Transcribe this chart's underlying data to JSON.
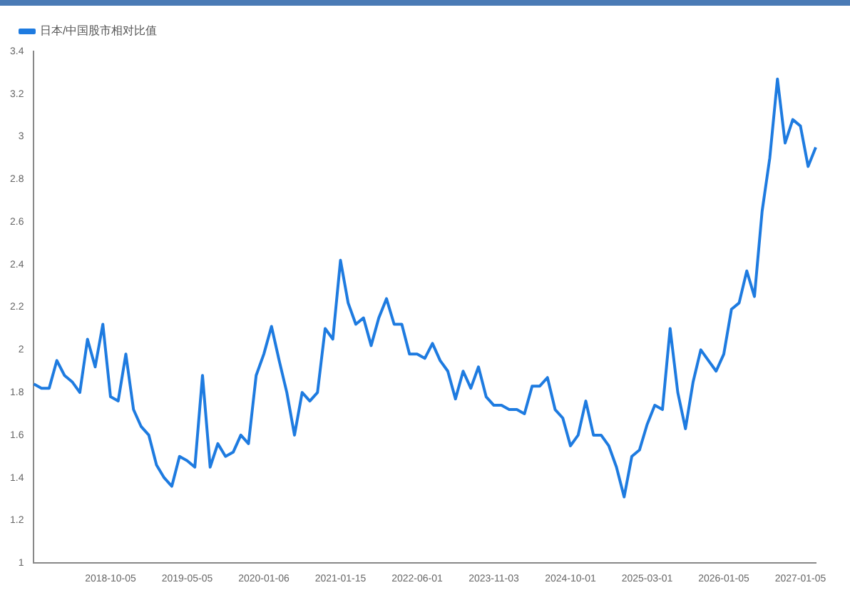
{
  "chart_data": {
    "type": "line",
    "legend": "top left",
    "marker": "none",
    "categories": [
      null,
      null,
      null,
      null,
      null,
      null,
      null,
      null,
      null,
      null,
      "2018-10-05",
      null,
      null,
      null,
      null,
      null,
      null,
      null,
      null,
      null,
      "2019-05-05",
      null,
      null,
      null,
      null,
      null,
      null,
      null,
      null,
      null,
      "2020-01-06",
      null,
      null,
      null,
      null,
      null,
      null,
      null,
      null,
      null,
      "2021-01-15",
      null,
      null,
      null,
      null,
      null,
      null,
      null,
      null,
      null,
      "2022-06-01",
      null,
      null,
      null,
      null,
      null,
      null,
      null,
      null,
      null,
      "2023-11-03",
      null,
      null,
      null,
      null,
      null,
      null,
      null,
      null,
      null,
      "2024-10-01",
      null,
      null,
      null,
      null,
      null,
      null,
      null,
      null,
      null,
      "2025-03-01",
      null,
      null,
      null,
      null,
      null,
      null,
      null,
      null,
      null,
      "2026-01-05",
      null,
      null,
      null,
      null,
      null,
      null,
      null,
      null,
      null,
      "2027-01-05",
      null,
      null
    ],
    "series": [
      {
        "name": "日本/中国股市相对比值",
        "color": "#1e7be0",
        "values": [
          1.84,
          1.82,
          1.82,
          1.95,
          1.88,
          1.85,
          1.8,
          2.05,
          1.92,
          2.12,
          1.78,
          1.76,
          1.98,
          1.72,
          1.64,
          1.6,
          1.46,
          1.4,
          1.36,
          1.5,
          1.48,
          1.45,
          1.88,
          1.45,
          1.56,
          1.5,
          1.52,
          1.6,
          1.56,
          1.88,
          1.98,
          2.11,
          1.95,
          1.8,
          1.6,
          1.8,
          1.76,
          1.8,
          2.1,
          2.05,
          2.42,
          2.22,
          2.12,
          2.15,
          2.02,
          2.15,
          2.24,
          2.12,
          2.12,
          1.98,
          1.98,
          1.96,
          2.03,
          1.95,
          1.9,
          1.77,
          1.9,
          1.82,
          1.92,
          1.78,
          1.74,
          1.74,
          1.72,
          1.72,
          1.7,
          1.83,
          1.83,
          1.87,
          1.72,
          1.68,
          1.55,
          1.6,
          1.76,
          1.6,
          1.6,
          1.55,
          1.45,
          1.31,
          1.5,
          1.53,
          1.65,
          1.74,
          1.72,
          2.1,
          1.8,
          1.63,
          1.85,
          2,
          1.95,
          1.9,
          1.98,
          2.19,
          2.22,
          2.37,
          2.25,
          2.65,
          2.9,
          3.27,
          2.97,
          3.08,
          3.05,
          2.86,
          2.95
        ]
      }
    ],
    "ylim": [
      1,
      3.4
    ],
    "yticks": [
      1,
      1.2,
      1.4,
      1.6,
      1.8,
      2,
      2.2,
      2.4,
      2.6,
      2.8,
      3,
      3.2,
      3.4
    ],
    "grid": false
  }
}
